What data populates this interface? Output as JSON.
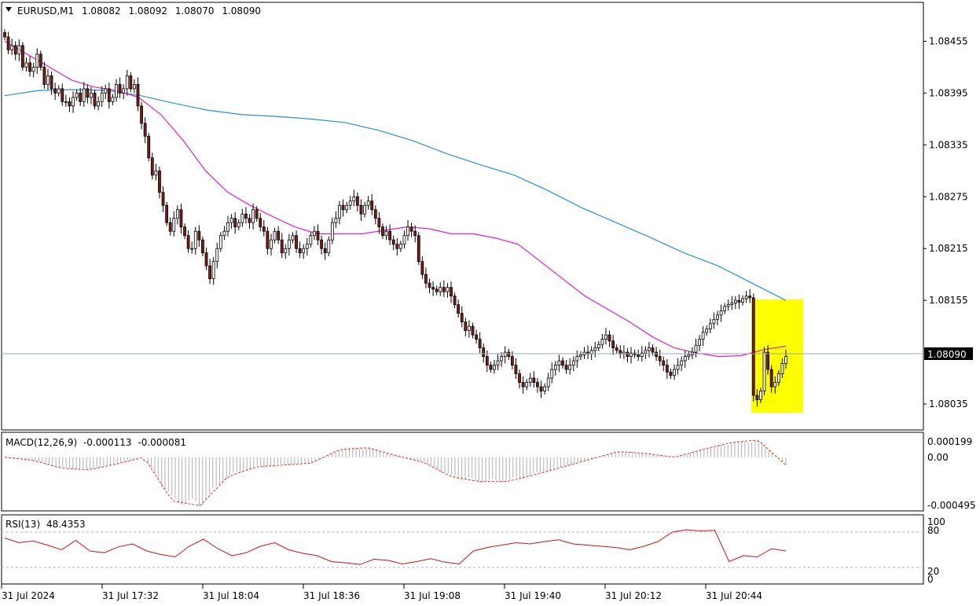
{
  "header": {
    "symbol": "EURUSD,M1",
    "open": "1.08082",
    "high": "1.08092",
    "low": "1.08070",
    "close": "1.08090"
  },
  "current_price_label": "1.08090",
  "macd": {
    "label": "MACD(12,26,9)",
    "main": "-0.000113",
    "signal": "-0.000081",
    "ticks": [
      "0.000199",
      "0.00",
      "-0.000495"
    ]
  },
  "rsi": {
    "label": "RSI(13)",
    "value": "48.4353",
    "ticks": [
      "100",
      "80",
      "20",
      "0"
    ]
  },
  "colors": {
    "bull": "#ffffff",
    "bear": "#7a1d12",
    "ma_fast": "#e020c8",
    "ma_slow": "#2a8fd4",
    "highlight": "#ffff00",
    "macd_signal": "#e03030",
    "rsi_line": "#d01010"
  },
  "chart_data": [
    {
      "type": "candlestick",
      "title": "EURUSD,M1",
      "ylim": [
        1.08005,
        1.085
      ],
      "y_ticks": [
        "1.08455",
        "1.08395",
        "1.08335",
        "1.08275",
        "1.08215",
        "1.08155",
        "1.08035"
      ],
      "x_ticks": [
        "31 Jul 2024",
        "31 Jul 17:32",
        "31 Jul 18:04",
        "31 Jul 18:36",
        "31 Jul 19:08",
        "31 Jul 19:40",
        "31 Jul 20:12",
        "31 Jul 20:44"
      ],
      "close_path": [
        1.0846,
        1.08445,
        1.0845,
        1.0844,
        1.0845,
        1.08425,
        1.0843,
        1.0842,
        1.08425,
        1.0844,
        1.08425,
        1.08405,
        1.08415,
        1.084,
        1.08395,
        1.084,
        1.08385,
        1.08385,
        1.0838,
        1.0839,
        1.08395,
        1.08385,
        1.084,
        1.0839,
        1.08395,
        1.0838,
        1.08385,
        1.08395,
        1.084,
        1.08385,
        1.0839,
        1.08405,
        1.08395,
        1.084,
        1.08415,
        1.084,
        1.08405,
        1.0838,
        1.0836,
        1.08345,
        1.0832,
        1.083,
        1.08305,
        1.0828,
        1.08265,
        1.08245,
        1.08235,
        1.0825,
        1.0826,
        1.0824,
        1.0823,
        1.08215,
        1.08215,
        1.08235,
        1.08225,
        1.0821,
        1.08195,
        1.0818,
        1.082,
        1.08215,
        1.0823,
        1.08235,
        1.08245,
        1.0825,
        1.0824,
        1.08245,
        1.08255,
        1.0825,
        1.08245,
        1.0826,
        1.0825,
        1.0824,
        1.08235,
        1.08215,
        1.08225,
        1.08235,
        1.08225,
        1.0821,
        1.08215,
        1.08225,
        1.0823,
        1.08215,
        1.0821,
        1.08215,
        1.0822,
        1.0823,
        1.08235,
        1.08225,
        1.08215,
        1.0821,
        1.08225,
        1.08245,
        1.0825,
        1.08265,
        1.0826,
        1.08265,
        1.0827,
        1.08275,
        1.08265,
        1.08255,
        1.08265,
        1.0827,
        1.0826,
        1.0825,
        1.0824,
        1.0823,
        1.08235,
        1.08225,
        1.0822,
        1.08215,
        1.0822,
        1.0823,
        1.0824,
        1.08235,
        1.0823,
        1.082,
        1.08185,
        1.08175,
        1.0817,
        1.08168,
        1.08165,
        1.0817,
        1.08165,
        1.0817,
        1.0816,
        1.0815,
        1.0814,
        1.0813,
        1.0812,
        1.08125,
        1.08115,
        1.0811,
        1.081,
        1.0809,
        1.0808,
        1.08075,
        1.0808,
        1.08085,
        1.0809,
        1.08095,
        1.0809,
        1.0808,
        1.0807,
        1.0806,
        1.08055,
        1.0806,
        1.08065,
        1.0806,
        1.08055,
        1.0805,
        1.08055,
        1.08065,
        1.08075,
        1.0808,
        1.08085,
        1.0808,
        1.08075,
        1.0808,
        1.08085,
        1.0809,
        1.08092,
        1.08095,
        1.08093,
        1.08097,
        1.081,
        1.08104,
        1.0811,
        1.08115,
        1.08108,
        1.081,
        1.08097,
        1.08093,
        1.08095,
        1.0809,
        1.08094,
        1.08092,
        1.0809,
        1.08094,
        1.08097,
        1.081,
        1.08095,
        1.0809,
        1.08085,
        1.0808,
        1.08072,
        1.08068,
        1.08075,
        1.0808,
        1.08085,
        1.0809,
        1.08092,
        1.08095,
        1.08103,
        1.0811,
        1.08118,
        1.08122,
        1.08128,
        1.08133,
        1.08138,
        1.08143,
        1.08148,
        1.0815,
        1.08152,
        1.08155,
        1.08153,
        1.08157,
        1.0816,
        1.08158,
        1.08045,
        1.0804,
        1.0805,
        1.08095,
        1.08075,
        1.08055,
        1.0806,
        1.0807,
        1.08082,
        1.0809
      ],
      "ma_fast": [
        1.08455,
        1.0844,
        1.08425,
        1.0841,
        1.08402,
        1.08398,
        1.0839,
        1.0837,
        1.0834,
        1.08305,
        1.0828,
        1.08265,
        1.08252,
        1.0824,
        1.08232,
        1.08232,
        1.08232,
        1.08236,
        1.0824,
        1.08238,
        1.08232,
        1.08232,
        1.08227,
        1.0822,
        1.082,
        1.0818,
        1.0816,
        1.08145,
        1.0813,
        1.08113,
        1.081,
        1.08094,
        1.0809,
        1.08091,
        1.08098,
        1.08102
      ],
      "ma_slow": [
        1.08392,
        1.08398,
        1.08399,
        1.08398,
        1.08392,
        1.08383,
        1.08375,
        1.0837,
        1.08368,
        1.08365,
        1.08361,
        1.08352,
        1.0834,
        1.08325,
        1.08312,
        1.083,
        1.08282,
        1.08262,
        1.08245,
        1.08228,
        1.0821,
        1.08195,
        1.08175,
        1.08155
      ]
    },
    {
      "type": "bar",
      "title": "MACD(12,26,9)",
      "ylim": [
        -0.000495,
        0.000199
      ],
      "signal_path": [
        0.0,
        -3e-05,
        -0.00011,
        -0.00013,
        -7e-05,
        -0.0,
        -0.00045,
        -0.0005,
        -0.0002,
        -0.0001,
        -8e-05,
        -6e-05,
        8e-05,
        0.0001,
        2e-05,
        -5e-05,
        -0.0002,
        -0.00025,
        -0.00025,
        -0.00018,
        -0.0001,
        -2e-05,
        6e-05,
        4e-05,
        0.0,
        8e-05,
        0.00015,
        0.00018,
        -8e-05
      ]
    },
    {
      "type": "line",
      "title": "RSI(13)",
      "ylim": [
        0,
        100
      ],
      "levels": [
        80,
        20
      ],
      "values": [
        70,
        62,
        65,
        58,
        50,
        66,
        48,
        45,
        55,
        60,
        48,
        42,
        38,
        56,
        68,
        52,
        40,
        45,
        56,
        62,
        50,
        44,
        40,
        30,
        28,
        25,
        34,
        32,
        26,
        30,
        35,
        29,
        26,
        48,
        54,
        58,
        62,
        60,
        64,
        67,
        60,
        58,
        56,
        54,
        50,
        56,
        64,
        80,
        84,
        82,
        83,
        30,
        40,
        38,
        52,
        48
      ]
    }
  ]
}
